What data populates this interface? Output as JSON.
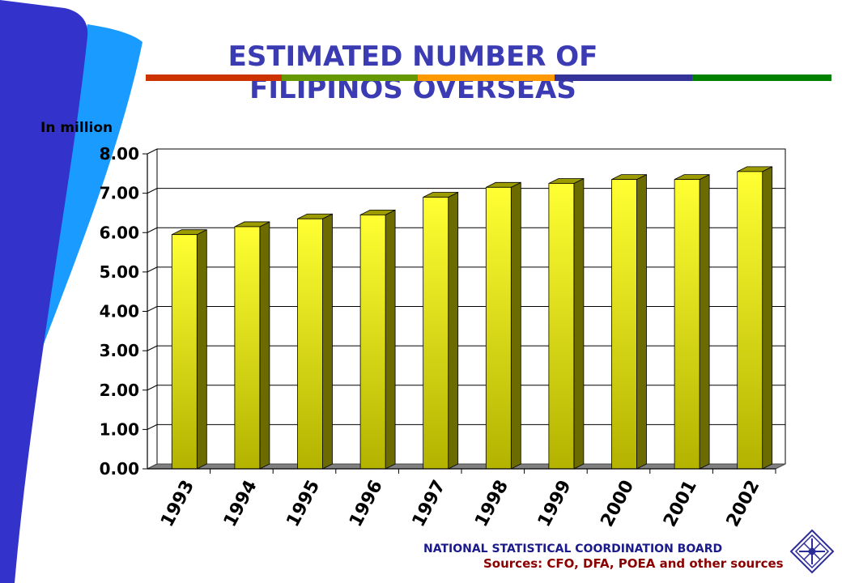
{
  "title_line1": "ESTIMATED NUMBER OF",
  "title_line2": "FILIPINOS OVERSEAS",
  "footer_org": "NATIONAL STATISTICAL COORDINATION BOARD",
  "sources_text": "Sources: CFO, DFA, POEA and other sources",
  "colors": {
    "title": "#3b3bb3",
    "stripe": [
      "#cc3300",
      "#669900",
      "#ff9900",
      "#333399",
      "#008000"
    ],
    "bar_front_top": "#ffff33",
    "bar_front_bottom": "#b3b300",
    "bar_side": "#6b6b00",
    "floor": "#808080"
  },
  "chart_data": {
    "type": "bar",
    "title": "ESTIMATED NUMBER OF FILIPINOS OVERSEAS",
    "ylabel": "In million",
    "xlabel": "",
    "categories": [
      "1993",
      "1994",
      "1995",
      "1996",
      "1997",
      "1998",
      "1999",
      "2000",
      "2001",
      "2002"
    ],
    "values": [
      5.95,
      6.15,
      6.35,
      6.45,
      6.9,
      7.15,
      7.25,
      7.35,
      7.35,
      7.55
    ],
    "ylim": [
      0,
      8
    ],
    "yticks": [
      "0.00",
      "1.00",
      "2.00",
      "3.00",
      "4.00",
      "5.00",
      "6.00",
      "7.00",
      "8.00"
    ],
    "grid": true,
    "style": "3d-column"
  }
}
